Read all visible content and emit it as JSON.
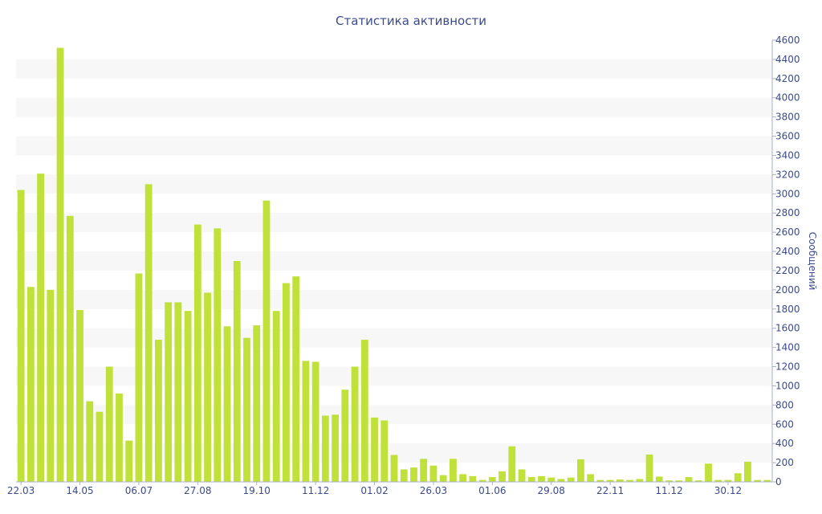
{
  "chart_data": {
    "type": "bar",
    "title": "Статистика активности",
    "ylabel": "Сообщений",
    "xlabel": "",
    "ylim": [
      0,
      4600
    ],
    "y_ticks": [
      0,
      200,
      400,
      600,
      800,
      1000,
      1200,
      1400,
      1600,
      1800,
      2000,
      2200,
      2400,
      2600,
      2800,
      3000,
      3200,
      3400,
      3600,
      3800,
      4000,
      4200,
      4400,
      4600
    ],
    "y_axis_side": "right",
    "grid": "alternating horizontal bands",
    "x_tick_labels": [
      {
        "index": 0,
        "label": "22.03"
      },
      {
        "index": 6,
        "label": "14.05"
      },
      {
        "index": 12,
        "label": "06.07"
      },
      {
        "index": 18,
        "label": "27.08"
      },
      {
        "index": 24,
        "label": "19.10"
      },
      {
        "index": 30,
        "label": "11.12"
      },
      {
        "index": 36,
        "label": "01.02"
      },
      {
        "index": 42,
        "label": "26.03"
      },
      {
        "index": 48,
        "label": "01.06"
      },
      {
        "index": 54,
        "label": "29.08"
      },
      {
        "index": 60,
        "label": "22.11"
      },
      {
        "index": 66,
        "label": "11.12"
      },
      {
        "index": 72,
        "label": "30.12"
      }
    ],
    "values": [
      3040,
      2030,
      3210,
      2000,
      4520,
      2770,
      1790,
      840,
      730,
      1200,
      920,
      430,
      2170,
      3100,
      1480,
      1870,
      1870,
      1780,
      2680,
      1970,
      2640,
      1620,
      2300,
      1500,
      1630,
      2930,
      1780,
      2070,
      2140,
      1260,
      1250,
      690,
      700,
      960,
      1200,
      1480,
      670,
      640,
      280,
      130,
      150,
      240,
      170,
      70,
      240,
      80,
      60,
      20,
      50,
      110,
      370,
      130,
      50,
      60,
      45,
      30,
      45,
      235,
      80,
      20,
      20,
      25,
      20,
      30,
      285,
      55,
      15,
      15,
      50,
      15,
      190,
      20,
      20,
      90,
      210,
      20,
      20
    ],
    "bar_color": "#bfe13a",
    "band_color": "#f7f7f7"
  }
}
